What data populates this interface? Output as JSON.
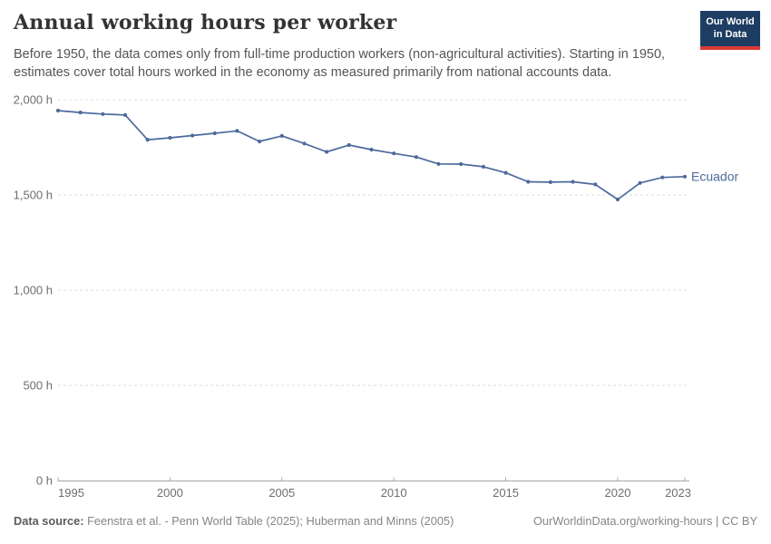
{
  "header": {
    "title": "Annual working hours per worker",
    "subtitle": "Before 1950, the data comes only from full-time production workers (non-agricultural activities). Starting in 1950, estimates cover total hours worked in the economy as measured primarily from national accounts data."
  },
  "logo": {
    "line1": "Our World",
    "line2": "in Data",
    "bg_color": "#1d3d63",
    "stripe_color": "#dc3a33"
  },
  "footer": {
    "datasource_label": "Data source:",
    "datasource_text": " Feenstra et al. - Penn World Table (2025); Huberman and Minns (2005)",
    "link_text": "OurWorldinData.org/working-hours | CC BY"
  },
  "chart_data": {
    "type": "line",
    "title": "Annual working hours per worker",
    "grid": "horizontal-dashed",
    "legend_position": "end-of-line-label",
    "x": [
      1995,
      1996,
      1997,
      1998,
      1999,
      2000,
      2001,
      2002,
      2003,
      2004,
      2005,
      2006,
      2007,
      2008,
      2009,
      2010,
      2011,
      2012,
      2013,
      2014,
      2015,
      2016,
      2017,
      2018,
      2019,
      2020,
      2021,
      2022,
      2023
    ],
    "series": [
      {
        "name": "Ecuador",
        "color": "#4C6A9C",
        "values": [
          1943,
          1933,
          1925,
          1920,
          1790,
          1800,
          1812,
          1824,
          1836,
          1781,
          1810,
          1770,
          1726,
          1762,
          1738,
          1718,
          1699,
          1663,
          1662,
          1648,
          1616,
          1569,
          1567,
          1569,
          1555,
          1476,
          1563,
          1592,
          1596
        ]
      }
    ],
    "xlabel": "",
    "ylabel": "",
    "ylim": [
      0,
      2000
    ],
    "xlim": [
      1995,
      2023
    ],
    "y_ticks": [
      {
        "value": 0,
        "label": "0 h"
      },
      {
        "value": 500,
        "label": "500 h"
      },
      {
        "value": 1000,
        "label": "1,000 h"
      },
      {
        "value": 1500,
        "label": "1,500 h"
      },
      {
        "value": 2000,
        "label": "2,000 h"
      }
    ],
    "x_ticks": [
      {
        "value": 1995,
        "label": "1995"
      },
      {
        "value": 2000,
        "label": "2000"
      },
      {
        "value": 2005,
        "label": "2005"
      },
      {
        "value": 2010,
        "label": "2010"
      },
      {
        "value": 2015,
        "label": "2015"
      },
      {
        "value": 2020,
        "label": "2020"
      },
      {
        "value": 2023,
        "label": "2023"
      }
    ],
    "colors": {
      "gridline": "#dcdcdc",
      "axis": "#a5a5a5",
      "tick_text": "#6e6e6e"
    }
  }
}
